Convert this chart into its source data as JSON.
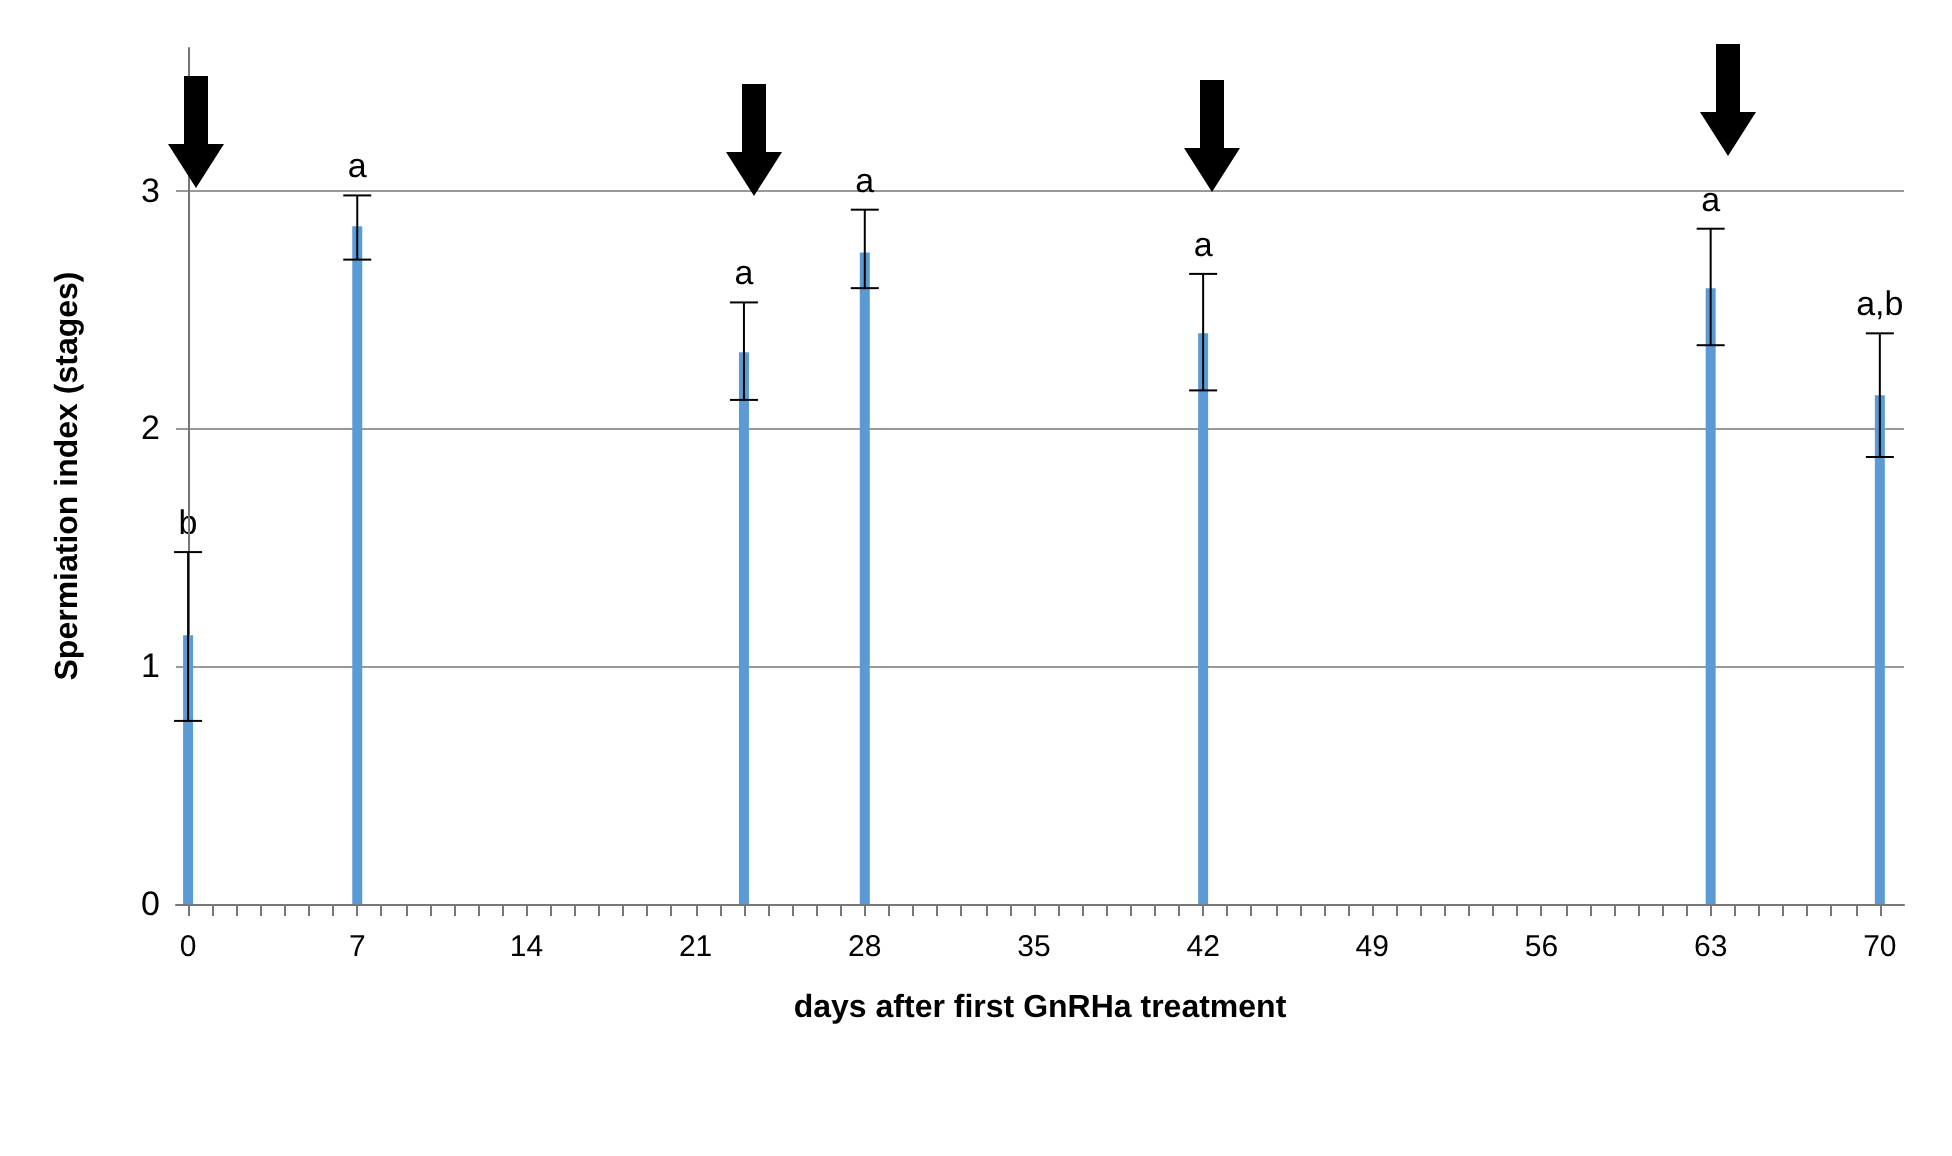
{
  "chart_data": {
    "type": "bar",
    "xlabel": "days after first GnRHa treatment",
    "ylabel": "Spermiation index (stages)",
    "x": [
      0,
      7,
      23,
      28,
      42,
      63,
      70
    ],
    "values": [
      1.13,
      2.85,
      2.32,
      2.74,
      2.4,
      2.59,
      2.14
    ],
    "color": "#5b9bd5",
    "errors": [
      [
        0.77,
        1.48
      ],
      [
        2.71,
        2.98
      ],
      [
        2.12,
        2.53
      ],
      [
        2.59,
        2.92
      ],
      [
        2.16,
        2.65
      ],
      [
        2.35,
        2.84
      ],
      [
        1.88,
        2.4
      ]
    ],
    "annotations": [
      {
        "text": "b",
        "x": 0,
        "y": 1.48
      },
      {
        "text": "a",
        "x": 7,
        "y": 2.98
      },
      {
        "text": "a",
        "x": 23,
        "y": 2.53
      },
      {
        "text": "a",
        "x": 28,
        "y": 2.92
      },
      {
        "text": "a",
        "x": 42,
        "y": 2.65
      },
      {
        "text": "a",
        "x": 63,
        "y": 2.84
      },
      {
        "text": "a,b",
        "x": 70,
        "y": 2.4
      }
    ],
    "xlim": [
      -0.5,
      71
    ],
    "xticks": [
      0,
      {
        "value": 1,
        "label": null
      },
      {
        "value": 2,
        "label": null
      },
      {
        "value": 3,
        "label": null
      },
      {
        "value": 4,
        "label": null
      },
      {
        "value": 5,
        "label": null
      },
      {
        "value": 6,
        "label": null
      },
      7,
      {
        "value": 8,
        "label": null
      },
      {
        "value": 9,
        "label": null
      },
      {
        "value": 10,
        "label": null
      },
      {
        "value": 11,
        "label": null
      },
      {
        "value": 12,
        "label": null
      },
      {
        "value": 13,
        "label": null
      },
      14,
      {
        "value": 15,
        "label": null
      },
      {
        "value": 16,
        "label": null
      },
      {
        "value": 17,
        "label": null
      },
      {
        "value": 18,
        "label": null
      },
      {
        "value": 19,
        "label": null
      },
      {
        "value": 20,
        "label": null
      },
      21,
      {
        "value": 22,
        "label": null
      },
      {
        "value": 23,
        "label": null
      },
      {
        "value": 24,
        "label": null
      },
      {
        "value": 25,
        "label": null
      },
      {
        "value": 26,
        "label": null
      },
      {
        "value": 27,
        "label": null
      },
      28,
      {
        "value": 29,
        "label": null
      },
      {
        "value": 30,
        "label": null
      },
      {
        "value": 31,
        "label": null
      },
      {
        "value": 32,
        "label": null
      },
      {
        "value": 33,
        "label": null
      },
      {
        "value": 34,
        "label": null
      },
      35,
      {
        "value": 36,
        "label": null
      },
      {
        "value": 37,
        "label": null
      },
      {
        "value": 38,
        "label": null
      },
      {
        "value": 39,
        "label": null
      },
      {
        "value": 40,
        "label": null
      },
      {
        "value": 41,
        "label": null
      },
      42,
      {
        "value": 43,
        "label": null
      },
      {
        "value": 44,
        "label": null
      },
      {
        "value": 45,
        "label": null
      },
      {
        "value": 46,
        "label": null
      },
      {
        "value": 47,
        "label": null
      },
      {
        "value": 48,
        "label": null
      },
      49,
      {
        "value": 50,
        "label": null
      },
      {
        "value": 51,
        "label": null
      },
      {
        "value": 52,
        "label": null
      },
      {
        "value": 53,
        "label": null
      },
      {
        "value": 54,
        "label": null
      },
      {
        "value": 55,
        "label": null
      },
      56,
      {
        "value": 57,
        "label": null
      },
      {
        "value": 58,
        "label": null
      },
      {
        "value": 59,
        "label": null
      },
      {
        "value": 60,
        "label": null
      },
      {
        "value": 61,
        "label": null
      },
      {
        "value": 62,
        "label": null
      },
      63,
      {
        "value": 64,
        "label": null
      },
      {
        "value": 65,
        "label": null
      },
      {
        "value": 66,
        "label": null
      },
      {
        "value": 67,
        "label": null
      },
      {
        "value": 68,
        "label": null
      },
      {
        "value": 69,
        "label": null
      },
      70
    ],
    "ylim": [
      0,
      3.6
    ],
    "yticks": [
      0,
      1,
      2,
      3
    ],
    "grid": "y"
  }
}
